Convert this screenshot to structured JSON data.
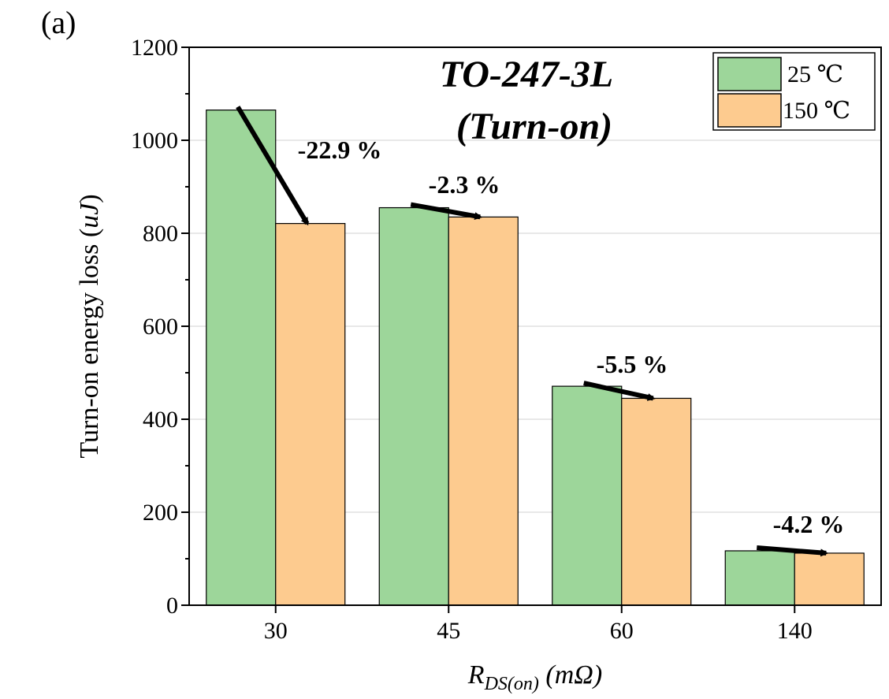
{
  "panel_label": "(a)",
  "colors": {
    "series_25": "#9dd69a",
    "series_150": "#fdcb8f",
    "grid": "#d0d0d0",
    "axis": "#000000"
  },
  "chart_data": {
    "type": "bar",
    "title_line1": "TO-247-3L",
    "title_line2": "(Turn-on)",
    "categories": [
      "30",
      "45",
      "60",
      "140"
    ],
    "ylabel_main": "Turn-on energy loss (",
    "ylabel_unit": "uJ",
    "ylabel_end": ")",
    "xlabel_R": "R",
    "xlabel_sub": "DS(on)",
    "xlabel_unit": " (mΩ)",
    "ylim": [
      0,
      1200
    ],
    "yticks": [
      "0",
      "200",
      "400",
      "600",
      "800",
      "1000",
      "1200"
    ],
    "grid": true,
    "legend_position": "top-right",
    "series": [
      {
        "name": "25 ℃",
        "values": [
          1065,
          855,
          471,
          117
        ]
      },
      {
        "name": "150 ℃",
        "values": [
          821,
          835,
          445,
          112
        ]
      }
    ],
    "annotations": [
      "-22.9 %",
      "-2.3 %",
      "-5.5 %",
      "-4.2 %"
    ]
  }
}
